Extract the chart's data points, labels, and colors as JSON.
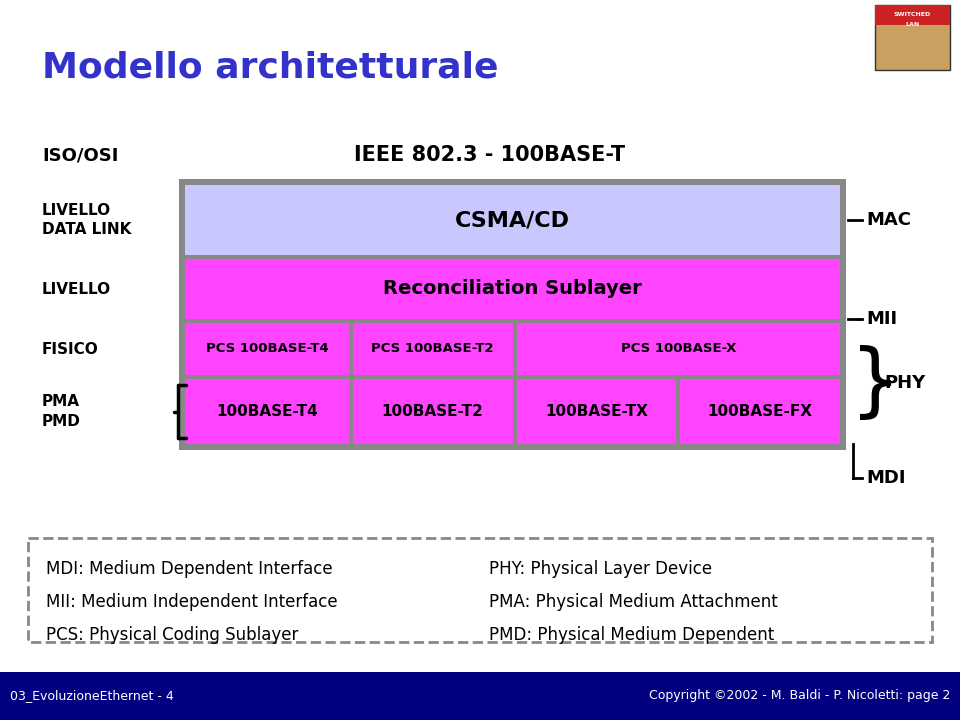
{
  "title": "Modello architetturale",
  "title_color": "#3333cc",
  "bg_color": "#ffffff",
  "ieee_label": "IEEE 802.3 - 100BASE-T",
  "iso_label": "ISO/OSI",
  "mac_label": "MAC",
  "mii_label": "MII",
  "phy_label": "PHY",
  "mdi_label": "MDI",
  "csmacd_text": "CSMA/CD",
  "csmacd_bg": "#c8c8ff",
  "csmacd_border": "#7777aa",
  "reconciliation_text": "Reconciliation Sublayer",
  "reconciliation_bg": "#ff44ff",
  "reconciliation_border": "#aa22aa",
  "pcs_bg": "#ff44ff",
  "pcs_border": "#aa22aa",
  "pmd_bg": "#ff44ff",
  "pmd_border": "#aa22aa",
  "outer_bg": "#888888",
  "pcs_boxes": [
    "PCS 100BASE-T4",
    "PCS 100BASE-T2",
    "PCS 100BASE-X"
  ],
  "pmd_boxes": [
    "100BASE-T4",
    "100BASE-T2",
    "100BASE-TX",
    "100BASE-FX"
  ],
  "footnote_left": [
    "MDI: Medium Dependent Interface",
    "MII: Medium Independent Interface",
    "PCS: Physical Coding Sublayer"
  ],
  "footnote_right": [
    "PHY: Physical Layer Device",
    "PMA: Physical Medium Attachment",
    "PMD: Physical Medium Dependent"
  ],
  "footer_left": "03_EvoluzioneEthernet - 4",
  "footer_right": "Copyright ©2002 - M. Baldi - P. Nicoletti: page 2",
  "footer_bg": "#000080"
}
